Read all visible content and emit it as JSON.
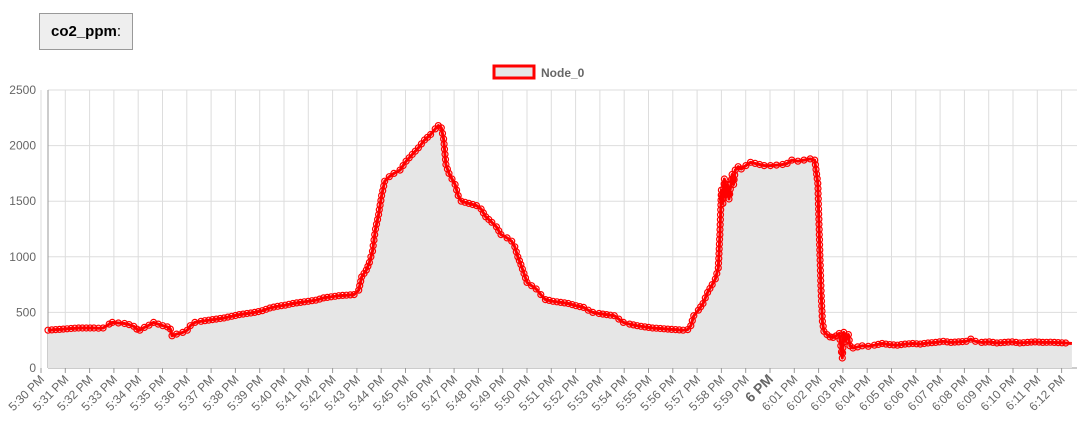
{
  "header": {
    "metric_label": "co2_ppm",
    "metric_suffix": ":"
  },
  "chart_data": {
    "type": "line",
    "title": "",
    "xlabel": "",
    "ylabel": "",
    "ylim": [
      0,
      2500
    ],
    "yticks": [
      0,
      500,
      1000,
      1500,
      2000,
      2500
    ],
    "grid": true,
    "fill_area": true,
    "legend": {
      "placement": "top-center",
      "entries": [
        "Node_0"
      ]
    },
    "colors": {
      "line": "#ff0000",
      "fill": "#e6e6e6",
      "grid": "#dddddd",
      "axis": "#999999",
      "text": "#666666"
    },
    "x_ticks": [
      "5:30 PM",
      "5:31 PM",
      "5:32 PM",
      "5:33 PM",
      "5:34 PM",
      "5:35 PM",
      "5:36 PM",
      "5:37 PM",
      "5:38 PM",
      "5:39 PM",
      "5:40 PM",
      "5:41 PM",
      "5:42 PM",
      "5:43 PM",
      "5:44 PM",
      "5:45 PM",
      "5:46 PM",
      "5:47 PM",
      "5:48 PM",
      "5:49 PM",
      "5:50 PM",
      "5:51 PM",
      "5:52 PM",
      "5:53 PM",
      "5:54 PM",
      "5:55 PM",
      "5:56 PM",
      "5:57 PM",
      "5:58 PM",
      "5:59 PM",
      "6 PM",
      "6:01 PM",
      "6:02 PM",
      "6:03 PM",
      "6:04 PM",
      "6:05 PM",
      "6:06 PM",
      "6:07 PM",
      "6:08 PM",
      "6:09 PM",
      "6:10 PM",
      "6:11 PM",
      "6:12 PM"
    ],
    "bold_tick": "6 PM",
    "x_minutes_range": [
      0,
      43.2
    ],
    "series": [
      {
        "name": "Node_0",
        "points": [
          [
            0.0,
            340
          ],
          [
            0.5,
            345
          ],
          [
            1.0,
            350
          ],
          [
            1.5,
            355
          ],
          [
            2.0,
            360
          ],
          [
            2.5,
            360
          ],
          [
            3.0,
            360
          ],
          [
            3.3,
            358
          ],
          [
            3.6,
            360
          ],
          [
            4.0,
            395
          ],
          [
            4.2,
            410
          ],
          [
            4.6,
            405
          ],
          [
            5.0,
            400
          ],
          [
            5.3,
            390
          ],
          [
            5.6,
            375
          ],
          [
            5.8,
            350
          ],
          [
            6.0,
            340
          ],
          [
            6.3,
            365
          ],
          [
            6.6,
            385
          ],
          [
            6.9,
            410
          ],
          [
            7.2,
            395
          ],
          [
            7.5,
            380
          ],
          [
            7.8,
            370
          ],
          [
            8.0,
            350
          ],
          [
            8.1,
            290
          ],
          [
            8.4,
            305
          ],
          [
            8.8,
            320
          ],
          [
            9.1,
            340
          ],
          [
            9.3,
            380
          ],
          [
            9.6,
            410
          ],
          [
            10.0,
            420
          ],
          [
            10.5,
            430
          ],
          [
            11.0,
            440
          ],
          [
            11.5,
            450
          ],
          [
            12.0,
            465
          ],
          [
            12.5,
            480
          ],
          [
            13.0,
            490
          ],
          [
            13.5,
            500
          ],
          [
            14.0,
            515
          ],
          [
            14.5,
            540
          ],
          [
            15.0,
            555
          ],
          [
            15.5,
            565
          ],
          [
            16.0,
            580
          ],
          [
            16.5,
            590
          ],
          [
            17.0,
            600
          ],
          [
            17.5,
            610
          ],
          [
            18.0,
            630
          ],
          [
            18.5,
            640
          ],
          [
            19.0,
            650
          ],
          [
            19.5,
            655
          ],
          [
            20.0,
            660
          ],
          [
            20.3,
            700
          ],
          [
            20.5,
            820
          ],
          [
            20.8,
            880
          ],
          [
            21.0,
            950
          ],
          [
            21.2,
            1050
          ],
          [
            21.4,
            1250
          ],
          [
            21.6,
            1380
          ],
          [
            21.8,
            1550
          ],
          [
            22.0,
            1680
          ],
          [
            22.3,
            1720
          ],
          [
            22.6,
            1750
          ],
          [
            23.0,
            1780
          ],
          [
            23.4,
            1860
          ],
          [
            23.8,
            1920
          ],
          [
            24.2,
            1980
          ],
          [
            24.6,
            2050
          ],
          [
            25.0,
            2100
          ],
          [
            25.3,
            2150
          ],
          [
            25.5,
            2180
          ],
          [
            25.7,
            2160
          ],
          [
            25.85,
            2060
          ],
          [
            26.0,
            1830
          ],
          [
            26.2,
            1750
          ],
          [
            26.4,
            1700
          ],
          [
            26.6,
            1650
          ],
          [
            26.8,
            1550
          ],
          [
            27.0,
            1500
          ],
          [
            27.5,
            1480
          ],
          [
            28.0,
            1460
          ],
          [
            28.3,
            1430
          ],
          [
            28.6,
            1360
          ],
          [
            29.0,
            1310
          ],
          [
            29.3,
            1270
          ],
          [
            29.6,
            1200
          ],
          [
            30.0,
            1170
          ],
          [
            30.3,
            1140
          ],
          [
            30.5,
            1090
          ],
          [
            30.7,
            1000
          ],
          [
            30.9,
            930
          ],
          [
            31.1,
            850
          ],
          [
            31.3,
            770
          ],
          [
            31.6,
            740
          ],
          [
            31.9,
            710
          ],
          [
            32.2,
            660
          ],
          [
            32.5,
            615
          ],
          [
            33.0,
            600
          ],
          [
            33.5,
            590
          ],
          [
            34.0,
            580
          ],
          [
            34.5,
            560
          ],
          [
            35.0,
            545
          ],
          [
            35.3,
            520
          ],
          [
            35.6,
            500
          ],
          [
            36.0,
            490
          ],
          [
            36.5,
            480
          ],
          [
            37.0,
            470
          ],
          [
            37.3,
            440
          ],
          [
            37.6,
            410
          ],
          [
            38.0,
            395
          ],
          [
            38.5,
            380
          ],
          [
            39.0,
            370
          ],
          [
            39.5,
            360
          ],
          [
            40.0,
            355
          ],
          [
            40.5,
            350
          ],
          [
            41.0,
            345
          ],
          [
            41.5,
            340
          ],
          [
            41.8,
            345
          ],
          [
            42.0,
            380
          ],
          [
            42.2,
            470
          ],
          [
            42.5,
            520
          ],
          [
            42.8,
            580
          ],
          [
            43.1,
            680
          ],
          [
            43.4,
            750
          ],
          [
            43.6,
            800
          ],
          [
            43.8,
            900
          ],
          [
            43.9,
            1200
          ],
          [
            44.0,
            1600
          ],
          [
            44.1,
            1480
          ],
          [
            44.2,
            1700
          ],
          [
            44.3,
            1560
          ],
          [
            44.4,
            1650
          ],
          [
            44.5,
            1520
          ],
          [
            44.7,
            1740
          ],
          [
            44.8,
            1650
          ],
          [
            44.9,
            1780
          ],
          [
            45.1,
            1810
          ],
          [
            45.3,
            1790
          ],
          [
            45.6,
            1820
          ],
          [
            45.9,
            1850
          ],
          [
            46.2,
            1840
          ],
          [
            46.5,
            1830
          ],
          [
            46.8,
            1820
          ],
          [
            47.2,
            1820
          ],
          [
            47.6,
            1825
          ],
          [
            48.0,
            1830
          ],
          [
            48.3,
            1840
          ],
          [
            48.6,
            1870
          ],
          [
            49.0,
            1860
          ],
          [
            49.4,
            1870
          ],
          [
            49.8,
            1880
          ],
          [
            50.1,
            1870
          ],
          [
            50.3,
            1660
          ],
          [
            50.4,
            1200
          ],
          [
            50.5,
            740
          ],
          [
            50.6,
            420
          ],
          [
            50.7,
            330
          ],
          [
            50.9,
            300
          ],
          [
            51.1,
            280
          ],
          [
            51.3,
            275
          ],
          [
            51.5,
            290
          ],
          [
            51.7,
            310
          ],
          [
            51.8,
            200
          ],
          [
            51.9,
            90
          ],
          [
            52.0,
            320
          ],
          [
            52.1,
            240
          ],
          [
            52.2,
            280
          ],
          [
            52.3,
            300
          ],
          [
            52.4,
            200
          ],
          [
            52.6,
            180
          ],
          [
            52.9,
            190
          ],
          [
            53.2,
            200
          ],
          [
            53.6,
            195
          ],
          [
            54.0,
            205
          ],
          [
            54.5,
            220
          ],
          [
            55.0,
            210
          ],
          [
            55.5,
            205
          ],
          [
            56.0,
            215
          ],
          [
            56.5,
            220
          ],
          [
            57.0,
            215
          ],
          [
            57.5,
            225
          ],
          [
            58.0,
            230
          ],
          [
            58.5,
            240
          ],
          [
            59.0,
            230
          ],
          [
            59.5,
            235
          ],
          [
            60.0,
            240
          ],
          [
            60.3,
            260
          ],
          [
            60.6,
            240
          ],
          [
            61.0,
            230
          ],
          [
            61.5,
            235
          ],
          [
            62.0,
            225
          ],
          [
            62.5,
            230
          ],
          [
            63.0,
            235
          ],
          [
            63.5,
            225
          ],
          [
            64.0,
            230
          ],
          [
            64.5,
            235
          ],
          [
            65.0,
            230
          ],
          [
            65.5,
            232
          ],
          [
            66.0,
            228
          ],
          [
            66.5,
            225
          ],
          [
            66.9,
            220
          ]
        ]
      }
    ]
  }
}
